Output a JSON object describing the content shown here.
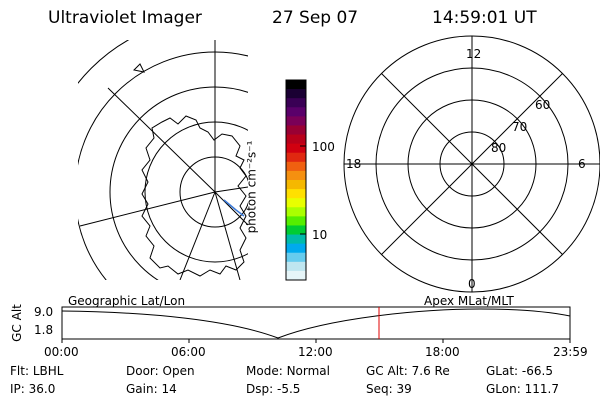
{
  "header": {
    "instrument": "Ultraviolet Imager",
    "date": "27 Sep 07",
    "time": "14:59:01 UT"
  },
  "colorbar": {
    "unit_label": "photon cm⁻²s⁻¹",
    "tick_labels": [
      "100",
      "10"
    ],
    "tick_values": [
      100,
      10
    ],
    "colors": [
      "#000000",
      "#1a0033",
      "#3a0055",
      "#5a006a",
      "#7a0058",
      "#990033",
      "#b8001a",
      "#d10010",
      "#e02810",
      "#f06010",
      "#f59010",
      "#f5b800",
      "#ffe000",
      "#e8ff00",
      "#aaff00",
      "#55ee00",
      "#00cc33",
      "#00bbaa",
      "#00aaee",
      "#66ccee",
      "#bfe6f0",
      "#e6f5f8"
    ]
  },
  "polar_plot": {
    "hour_labels": {
      "top": "12",
      "left": "18",
      "right": "6",
      "bottom": "0"
    },
    "latitude_labels": [
      "60",
      "70",
      "80"
    ]
  },
  "altitude_panel": {
    "y_axis_label": "GC Alt",
    "y_ticks": [
      "9.0",
      "1.8"
    ],
    "left_caption": "Geographic Lat/Lon",
    "right_caption": "Apex MLat/MLT",
    "x_ticks": [
      "00:00",
      "06:00",
      "12:00",
      "18:00",
      "23:59"
    ],
    "marker_time": "14:59",
    "colors": {
      "curve": "#000000",
      "marker": "#e00000"
    }
  },
  "info": {
    "row1": [
      {
        "label": "Flt:",
        "value": "LBHL"
      },
      {
        "label": "Door:",
        "value": "Open"
      },
      {
        "label": "Mode:",
        "value": "Normal"
      },
      {
        "label": "GC Alt:",
        "value": "7.6 Re"
      },
      {
        "label": "GLat:",
        "value": "-66.5"
      }
    ],
    "row2": [
      {
        "label": "IP:",
        "value": "36.0"
      },
      {
        "label": "Gain:",
        "value": "14"
      },
      {
        "label": "Dsp:",
        "value": "-5.5"
      },
      {
        "label": "Seq:",
        "value": "39"
      },
      {
        "label": "GLon:",
        "value": "111.7"
      }
    ]
  }
}
